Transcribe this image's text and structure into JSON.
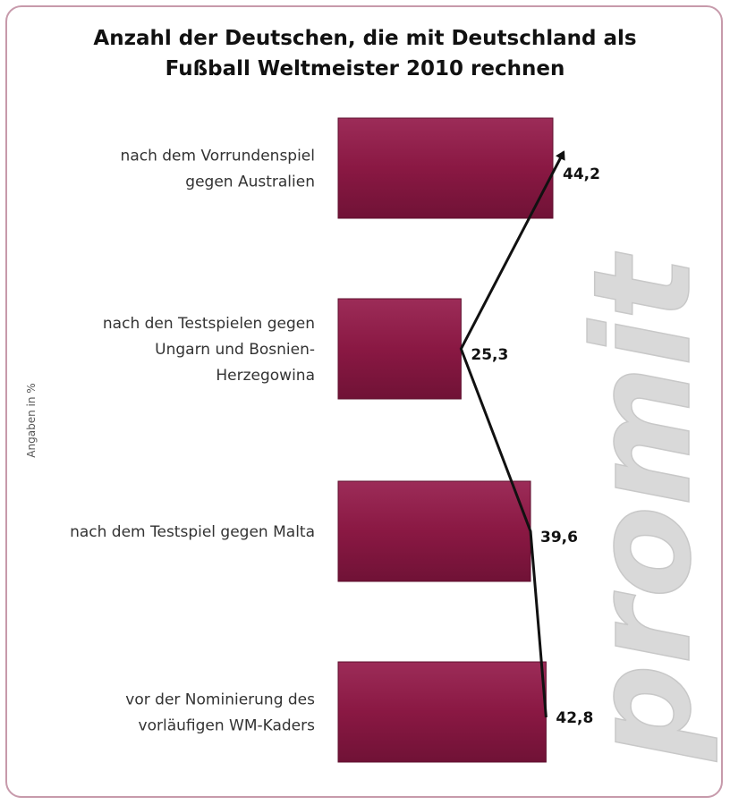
{
  "chart_data": {
    "type": "bar",
    "orientation": "horizontal",
    "title": "Anzahl der Deutschen, die mit Deutschland als Fußball Weltmeister 2010 rechnen",
    "title_lines": [
      "Anzahl der Deutschen, die mit Deutschland als",
      "Fußball Weltmeister 2010 rechnen"
    ],
    "ylabel": "Angaben in %",
    "categories": [
      [
        "nach dem Vorrundenspiel",
        "gegen Australien"
      ],
      [
        "nach den Testspielen gegen",
        "Ungarn und Bosnien-",
        "Herzegowina"
      ],
      [
        "nach dem Testspiel gegen Malta"
      ],
      [
        "vor der Nominierung des",
        "vorläufigen WM-Kaders"
      ]
    ],
    "values": [
      44.2,
      25.3,
      39.6,
      42.8
    ],
    "value_labels": [
      "44,2",
      "25,3",
      "39,6",
      "42,8"
    ],
    "trend_arrow": true,
    "bar_color": "#8a1843",
    "watermark": "promit"
  }
}
